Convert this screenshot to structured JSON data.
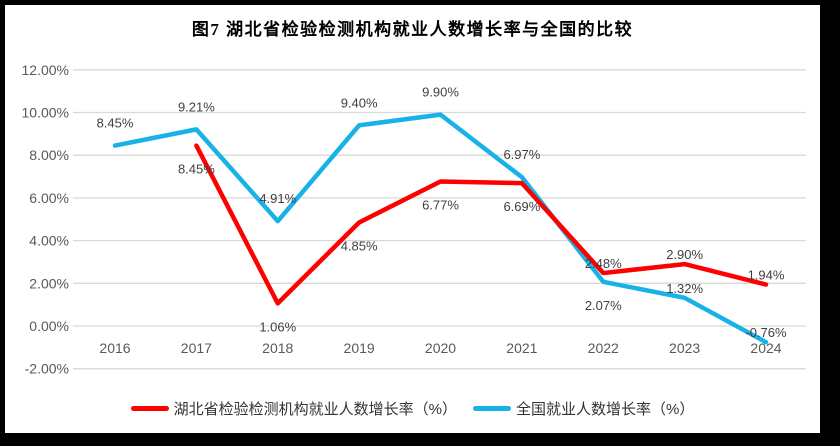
{
  "title": "图7 湖北省检验检测机构就业人数增长率与全国的比较",
  "chart_data": {
    "type": "line",
    "title": "图7 湖北省检验检测机构就业人数增长率与全国的比较",
    "categories": [
      "2016",
      "2017",
      "2018",
      "2019",
      "2020",
      "2021",
      "2022",
      "2023",
      "2024"
    ],
    "series": [
      {
        "name": "湖北省检验检测机构就业人数增长率（%）",
        "color": "#FE0000",
        "values": [
          null,
          8.45,
          1.06,
          4.85,
          6.77,
          6.69,
          2.48,
          2.9,
          1.94
        ],
        "data_labels": [
          null,
          "8.45%",
          "1.06%",
          "4.85%",
          "6.77%",
          "6.69%",
          "2.48%",
          "2.90%",
          "1.94%"
        ],
        "label_placement": [
          null,
          "below",
          "below",
          "below",
          "below",
          "below",
          "near-above",
          "near-above",
          "near-above"
        ]
      },
      {
        "name": "全国就业人数增长率（%）",
        "color": "#18B2E8",
        "values": [
          8.45,
          9.21,
          4.91,
          9.4,
          9.9,
          6.97,
          2.07,
          1.32,
          -0.76
        ],
        "data_labels": [
          "8.45%",
          "9.21%",
          "4.91%",
          "9.40%",
          "9.90%",
          "6.97%",
          "2.07%",
          "1.32%",
          "-0.76%"
        ],
        "label_placement": [
          "above",
          "above",
          "above",
          "above",
          "above",
          "above",
          "below",
          "near-above",
          "near-above"
        ]
      }
    ],
    "ylim": [
      -2,
      12
    ],
    "yticks": [
      {
        "value": -2,
        "label": "-2.00%"
      },
      {
        "value": 0,
        "label": "0.00%"
      },
      {
        "value": 2,
        "label": "2.00%"
      },
      {
        "value": 4,
        "label": "4.00%"
      },
      {
        "value": 6,
        "label": "6.00%"
      },
      {
        "value": 8,
        "label": "8.00%"
      },
      {
        "value": 10,
        "label": "10.00%"
      },
      {
        "value": 12,
        "label": "12.00%"
      }
    ],
    "grid": true,
    "legend_position": "bottom",
    "colors": {
      "grid": "#D9D9D9",
      "tick_label": "#595959",
      "data_label": "#404040",
      "title": "#000000",
      "frame": "#000000",
      "background": "#FFFFFF"
    }
  }
}
